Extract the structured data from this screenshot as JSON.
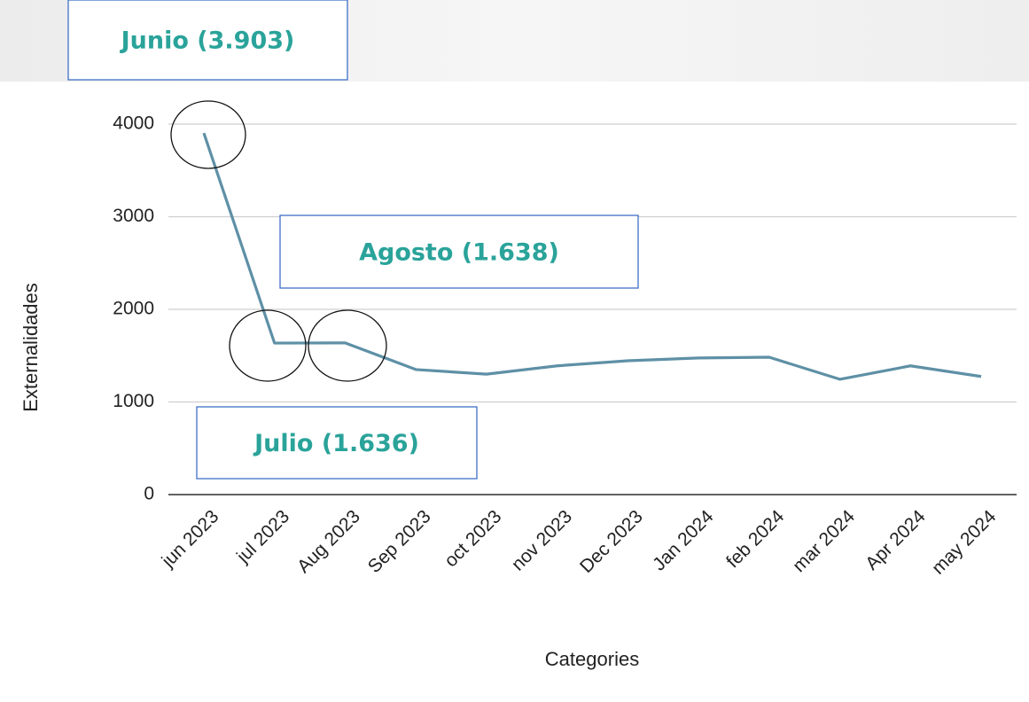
{
  "chart_data": {
    "type": "line",
    "y_label": "Externalidades",
    "x_label": "Categories",
    "categories": [
      "jun 2023",
      "jul 2023",
      "Aug 2023",
      "Sep 2023",
      "oct 2023",
      "nov 2023",
      "Dec 2023",
      "Jan 2024",
      "feb 2024",
      "mar 2024",
      "Apr 2024",
      "may 2024"
    ],
    "values": [
      3903,
      1636,
      1638,
      1350,
      1300,
      1390,
      1445,
      1475,
      1483,
      1245,
      1390,
      1275
    ],
    "color": "#5e90a6",
    "ylim": [
      0,
      4000
    ],
    "yticks": [
      0,
      1000,
      2000,
      3000,
      4000
    ],
    "grid": true,
    "annotations": [
      "Junio (3.903)",
      "Agosto (1.638)",
      "Julio (1.636)"
    ]
  }
}
